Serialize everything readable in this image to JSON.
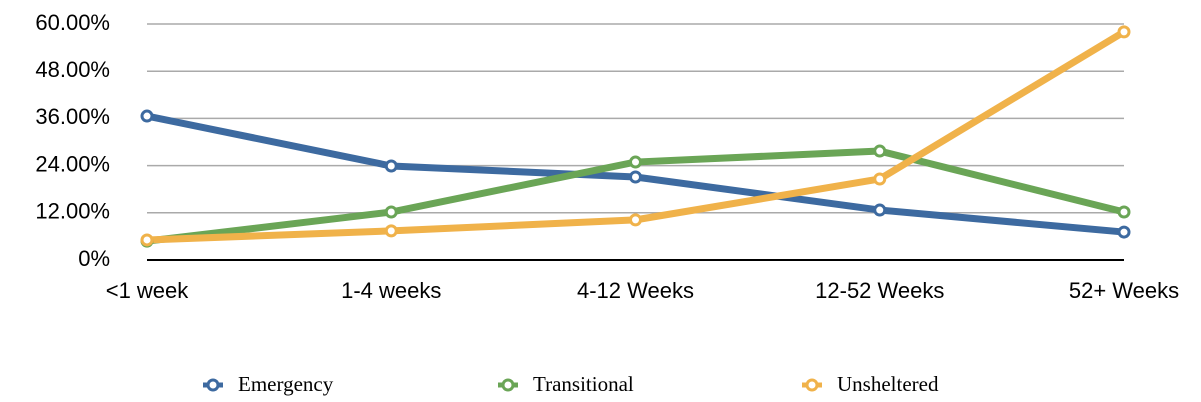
{
  "chart_data": {
    "type": "line",
    "categories": [
      "<1 week",
      "1-4 weeks",
      "4-12 Weeks",
      "12-52 Weeks",
      "52+ Weeks"
    ],
    "series": [
      {
        "name": "Emergency",
        "color": "#3d6aa0",
        "values": [
          36.6,
          23.9,
          21.1,
          12.7,
          7.1
        ]
      },
      {
        "name": "Transitional",
        "color": "#6aa556",
        "values": [
          4.8,
          12.2,
          24.9,
          27.7,
          12.2
        ]
      },
      {
        "name": "Unsheltered",
        "color": "#f0b24a",
        "values": [
          5.1,
          7.4,
          10.2,
          20.6,
          58.0
        ]
      }
    ],
    "ylim": [
      0,
      60
    ],
    "yticks": [
      {
        "value": 0,
        "label": "0%"
      },
      {
        "value": 12,
        "label": "12.00%"
      },
      {
        "value": 24,
        "label": "24.00%"
      },
      {
        "value": 36,
        "label": "36.00%"
      },
      {
        "value": 48,
        "label": "48.00%"
      },
      {
        "value": 60,
        "label": "60.00%"
      }
    ],
    "grid": true,
    "legend": "bottom"
  }
}
